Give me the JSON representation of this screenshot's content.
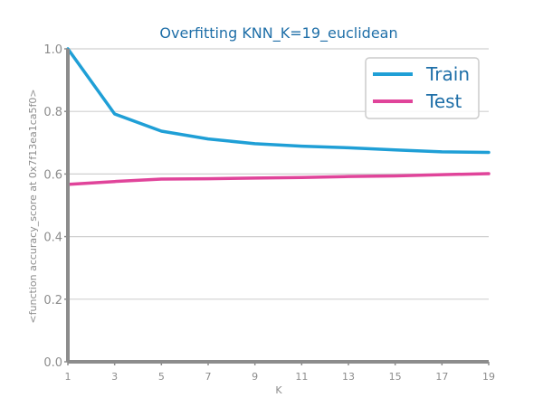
{
  "chart_data": {
    "type": "line",
    "title": "Overfitting KNN_K=19_euclidean",
    "xlabel": "K",
    "ylabel": "<function accuracy_score at 0x7f13ea1ca5f0>",
    "x": [
      1,
      3,
      5,
      7,
      9,
      11,
      13,
      15,
      17,
      19
    ],
    "xlim": [
      1,
      19
    ],
    "ylim": [
      0.0,
      1.0
    ],
    "yticks": [
      0.0,
      0.2,
      0.4,
      0.6,
      0.8,
      1.0
    ],
    "ytick_labels": [
      "0.0",
      "0.2",
      "0.4",
      "0.6",
      "0.8",
      "1.0"
    ],
    "xticks": [
      1,
      3,
      5,
      7,
      9,
      11,
      13,
      15,
      17,
      19
    ],
    "xtick_labels": [
      "1",
      "3",
      "5",
      "7",
      "9",
      "11",
      "13",
      "15",
      "17",
      "19"
    ],
    "grid": "horizontal",
    "legend_position": "top-right",
    "series": [
      {
        "name": "Train",
        "color": "#1f9fd6",
        "values": [
          1.0,
          0.792,
          0.737,
          0.712,
          0.697,
          0.689,
          0.684,
          0.677,
          0.671,
          0.669
        ]
      },
      {
        "name": "Test",
        "color": "#e0449a",
        "values": [
          0.567,
          0.576,
          0.584,
          0.585,
          0.587,
          0.589,
          0.592,
          0.594,
          0.598,
          0.601
        ]
      }
    ]
  }
}
